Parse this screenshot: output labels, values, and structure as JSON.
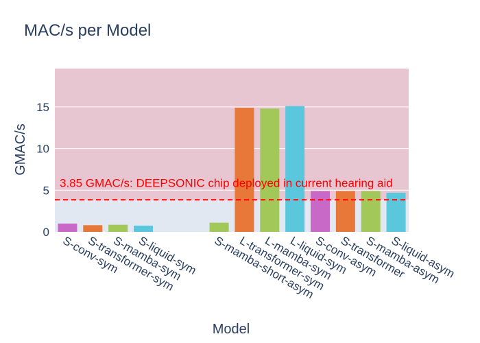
{
  "chart_data": {
    "type": "bar",
    "title": "MAC/s per Model",
    "xlabel": "Model",
    "ylabel": "GMAC/s",
    "ylim": [
      0,
      19.6
    ],
    "yticks": [
      0,
      5,
      10,
      15
    ],
    "categories": [
      "S-conv-sym",
      "S-transformer-sym",
      "S-mamba-sym",
      "S-liquid-sym",
      "",
      "",
      "S-mamba-short-asym",
      "L-transformer-sym",
      "L-mamba-sym",
      "L-liquid-sym",
      "S-conv-asym",
      "S-transformer",
      "S-mamba-asym",
      "S-liquid-asym"
    ],
    "values": [
      1.0,
      0.8,
      0.85,
      0.75,
      null,
      null,
      1.1,
      14.9,
      14.8,
      15.1,
      4.9,
      4.9,
      4.9,
      4.7
    ],
    "bar_colors": [
      "#c869c8",
      "#e8783a",
      "#a2c85a",
      "#5bc7dc",
      null,
      null,
      "#a2c85a",
      "#e8783a",
      "#a2c85a",
      "#5bc7dc",
      "#c869c8",
      "#e8783a",
      "#a2c85a",
      "#5bc7dc"
    ],
    "threshold": {
      "value": 3.85,
      "label": "3.85 GMAC/s: DEEPSONIC chip deployed in current hearing aid",
      "color": "#ff0000"
    },
    "region_colors": {
      "above_threshold": "#e8c6d1",
      "below_threshold": "#e2e8f2"
    },
    "grid": true,
    "legend": "none"
  }
}
